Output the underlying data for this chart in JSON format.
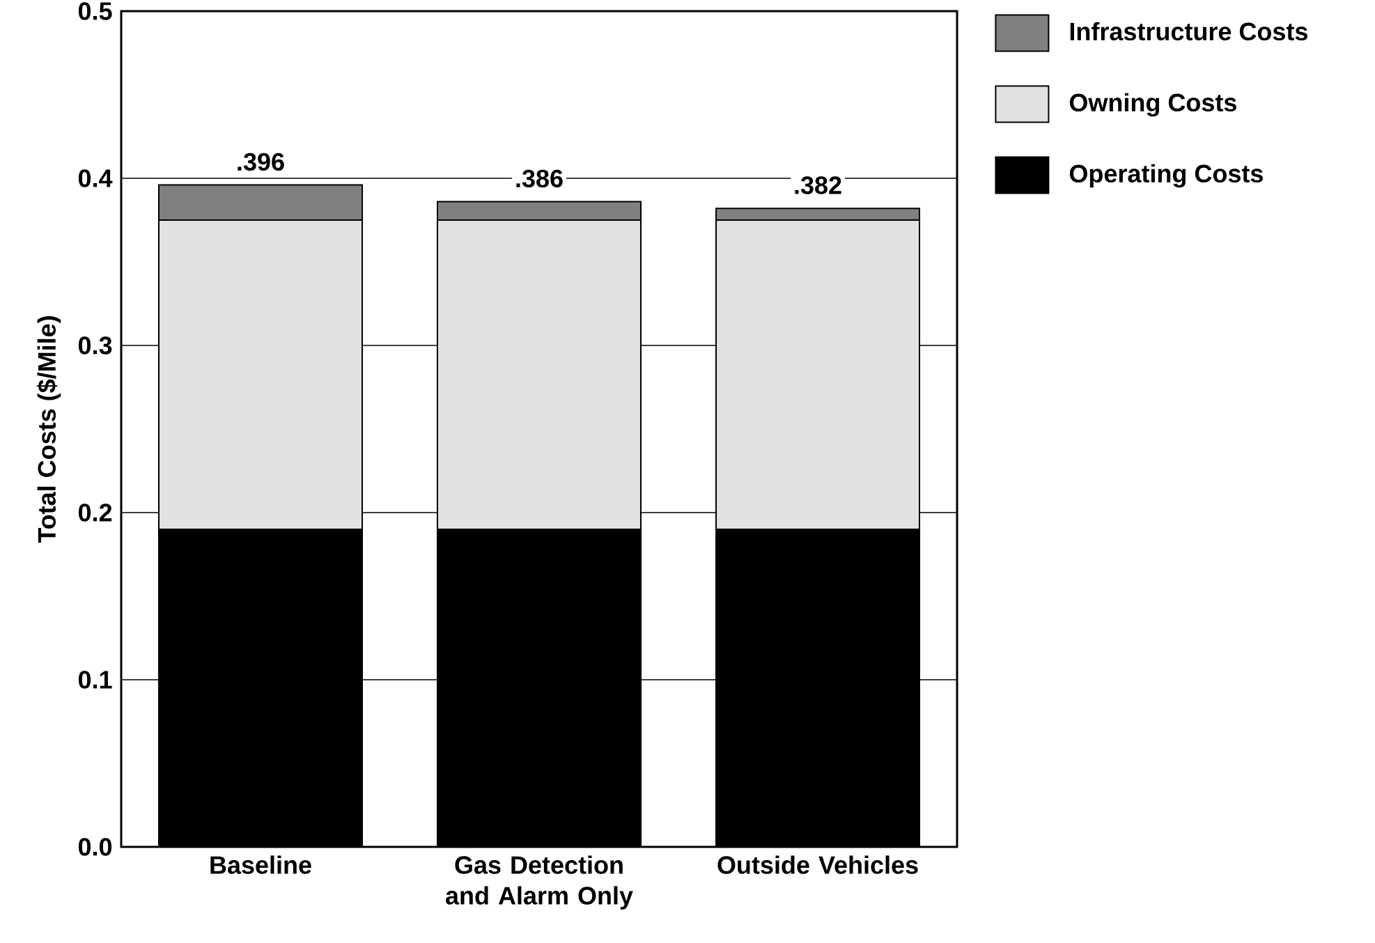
{
  "chart_data": {
    "type": "bar",
    "stacked": true,
    "ylabel": "Total Costs ($/Mile)",
    "categories": [
      "Baseline",
      "Gas Detection and Alarm Only",
      "Outside Vehicles"
    ],
    "series": [
      {
        "name": "Operating Costs",
        "color": "#000000",
        "values": [
          0.19,
          0.19,
          0.19
        ]
      },
      {
        "name": "Owning Costs",
        "color": "#e0e1e3",
        "values": [
          0.185,
          0.185,
          0.185
        ]
      },
      {
        "name": "Infrastructure Costs",
        "color": "#808080",
        "values": [
          0.021,
          0.011,
          0.007
        ]
      }
    ],
    "totals": [
      ".396",
      ".386",
      ".382"
    ],
    "ylim": [
      0,
      0.5
    ],
    "yticks": [
      {
        "value": 0,
        "label": "0.0"
      },
      0.1,
      0.2,
      0.3,
      0.4,
      0.5
    ],
    "grid": "y",
    "legend": "right"
  }
}
